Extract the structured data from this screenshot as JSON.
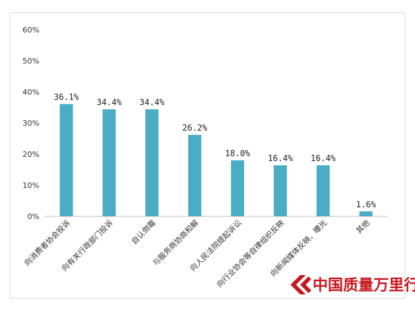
{
  "chart_data": {
    "type": "bar",
    "categories": [
      "向消费者协会投诉",
      "向有关行政部门投诉",
      "自认倒霉",
      "与服务商协商和解",
      "向人民法院提起诉讼",
      "向行业协会等自律组织反映",
      "向新闻媒体反映、曝光",
      "其他"
    ],
    "values": [
      36.1,
      34.4,
      34.4,
      26.2,
      18.0,
      16.4,
      16.4,
      1.6
    ],
    "data_labels": [
      "36.1%",
      "34.4%",
      "34.4%",
      "26.2%",
      "18.0%",
      "16.4%",
      "16.4%",
      "1.6%"
    ],
    "yticks": [
      "0%",
      "10%",
      "20%",
      "30%",
      "40%",
      "50%",
      "60%"
    ],
    "ylim": [
      0,
      60
    ],
    "bar_color": "#4bacc6",
    "grid": false,
    "title": "",
    "xlabel": "",
    "ylabel": ""
  },
  "watermark": {
    "text": "中国质量万里行",
    "color": "#c8161d"
  }
}
